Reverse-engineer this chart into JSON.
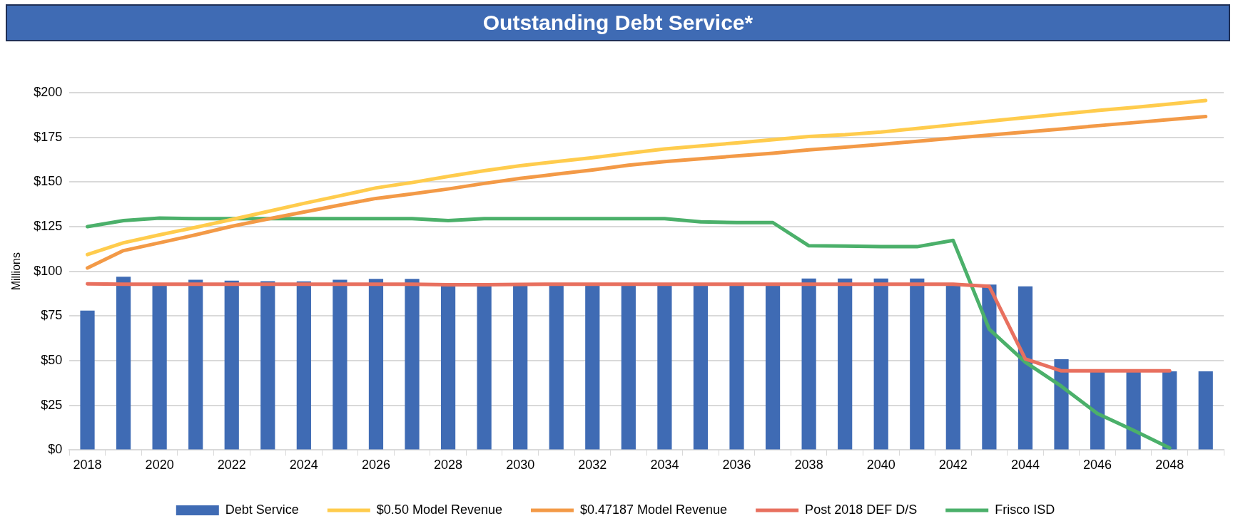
{
  "chart_data": {
    "type": "bar",
    "title": "Outstanding Debt Service*",
    "ylabel": "Millions",
    "categories": [
      "2018",
      null,
      "2020",
      null,
      "2022",
      null,
      "2024",
      null,
      "2026",
      null,
      "2028",
      null,
      "2030",
      null,
      "2032",
      null,
      "2034",
      null,
      "2036",
      null,
      "2038",
      null,
      "2040",
      null,
      "2042",
      null,
      "2044",
      null,
      "2046",
      null,
      "2048",
      null
    ],
    "series": [
      {
        "name": "Debt Service",
        "color": "#3f6bb4",
        "values": [
          78,
          97,
          93,
          95.3,
          94.8,
          94.5,
          94.4,
          95.3,
          95.8,
          95.8,
          92.5,
          92.5,
          93,
          93,
          93,
          93,
          93,
          93,
          93,
          93,
          96,
          96,
          96,
          96,
          93,
          92.6,
          91.6,
          50.8,
          44,
          44,
          44,
          44
        ]
      },
      {
        "name": "$0.50 Model Revenue",
        "type": "line",
        "color": "#ffcc4d",
        "values": [
          109.4,
          116,
          120.4,
          124.6,
          129,
          133.5,
          138,
          142.3,
          146.7,
          149.7,
          153.1,
          156.3,
          159.1,
          161.4,
          163.6,
          166.1,
          168.5,
          170.2,
          171.9,
          173.7,
          175.5,
          176.5,
          178,
          180,
          182,
          184,
          186,
          188,
          190,
          191.7,
          193.6,
          195.6
        ]
      },
      {
        "name": "$0.47187 Model Revenue",
        "type": "line",
        "color": "#f39a47",
        "values": [
          101.9,
          111.6,
          116,
          120.4,
          125.2,
          129.3,
          133.2,
          137.1,
          140.8,
          143.4,
          146.1,
          149.2,
          152,
          154.4,
          156.7,
          159.4,
          161.4,
          163,
          164.6,
          166.1,
          168,
          169.5,
          171.1,
          172.8,
          174.6,
          176.3,
          178,
          179.7,
          181.5,
          183.2,
          184.9,
          186.6
        ]
      },
      {
        "name": "Post 2018 DEF D/S",
        "type": "line",
        "color": "#e8705f",
        "values": [
          93,
          92.8,
          92.8,
          92.8,
          92.8,
          92.8,
          92.8,
          92.8,
          92.8,
          92.8,
          92.5,
          92.5,
          92.7,
          92.8,
          92.8,
          92.8,
          92.8,
          92.8,
          92.8,
          92.8,
          92.8,
          92.8,
          92.8,
          92.8,
          92.8,
          91.6,
          51,
          44.3,
          44.3,
          44.3,
          44.3,
          null
        ]
      },
      {
        "name": "Frisco ISD",
        "type": "line",
        "color": "#4bb06a",
        "values": [
          125,
          128.4,
          129.8,
          129.5,
          129.5,
          129.5,
          129.5,
          129.5,
          129.5,
          129.5,
          128.4,
          129.5,
          129.5,
          129.5,
          129.5,
          129.5,
          129.5,
          127.7,
          127.3,
          127.3,
          114.3,
          114.1,
          113.8,
          113.8,
          117.3,
          67.6,
          49.2,
          35.7,
          20.4,
          11,
          1.2,
          null
        ]
      }
    ],
    "ylim": [
      0,
      200
    ],
    "yticks": [
      {
        "value": 0,
        "label": "$0"
      },
      {
        "value": 25,
        "label": "$25"
      },
      {
        "value": 50,
        "label": "$50"
      },
      {
        "value": 75,
        "label": "$75"
      },
      {
        "value": 100,
        "label": "$100"
      },
      {
        "value": 125,
        "label": "$125"
      },
      {
        "value": 150,
        "label": "$150"
      },
      {
        "value": 175,
        "label": "$175"
      },
      {
        "value": 200,
        "label": "$200"
      }
    ],
    "grid": "y",
    "legend": "bottom",
    "marker": "none",
    "line_style": "solid"
  }
}
